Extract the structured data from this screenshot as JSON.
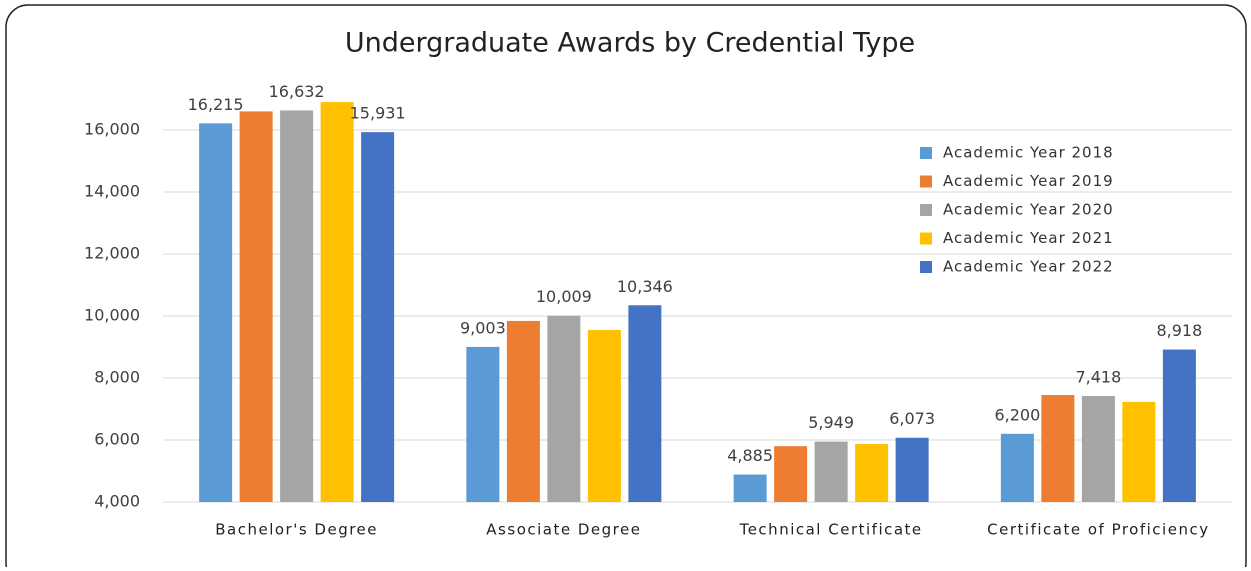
{
  "chart_data": {
    "type": "bar",
    "title": "Undergraduate Awards by Credential Type",
    "categories": [
      "Bachelor's Degree",
      "Associate Degree",
      "Technical Certificate",
      "Certificate of Proficiency"
    ],
    "series": [
      {
        "name": "Academic Year 2018",
        "color": "#5b9bd5",
        "values": [
          16215,
          9003,
          4885,
          6200
        ],
        "value_labels": [
          "16,215",
          "9,003",
          "4,885",
          "6,200"
        ]
      },
      {
        "name": "Academic Year 2019",
        "color": "#ed7d31",
        "values": [
          16600,
          9840,
          5800,
          7450
        ],
        "value_labels": [
          null,
          null,
          null,
          null
        ]
      },
      {
        "name": "Academic Year 2020",
        "color": "#a5a5a5",
        "values": [
          16632,
          10009,
          5949,
          7418
        ],
        "value_labels": [
          "16,632",
          "10,009",
          "5,949",
          "7,418"
        ]
      },
      {
        "name": "Academic Year 2021",
        "color": "#ffc000",
        "values": [
          16900,
          9550,
          5870,
          7230
        ],
        "value_labels": [
          null,
          null,
          null,
          null
        ]
      },
      {
        "name": "Academic Year 2022",
        "color": "#4472c4",
        "values": [
          15931,
          10346,
          6073,
          8918
        ],
        "value_labels": [
          "15,931",
          "10,346",
          "6,073",
          "8,918"
        ]
      }
    ],
    "ylim": [
      4000,
      17000
    ],
    "yticks": [
      {
        "value": 4000,
        "label": "4,000"
      },
      {
        "value": 6000,
        "label": "6,000"
      },
      {
        "value": 8000,
        "label": "8,000"
      },
      {
        "value": 10000,
        "label": "10,000"
      },
      {
        "value": 12000,
        "label": "12,000"
      },
      {
        "value": 14000,
        "label": "14,000"
      },
      {
        "value": 16000,
        "label": "16,000"
      }
    ],
    "grid": true,
    "legend": "upper right"
  }
}
